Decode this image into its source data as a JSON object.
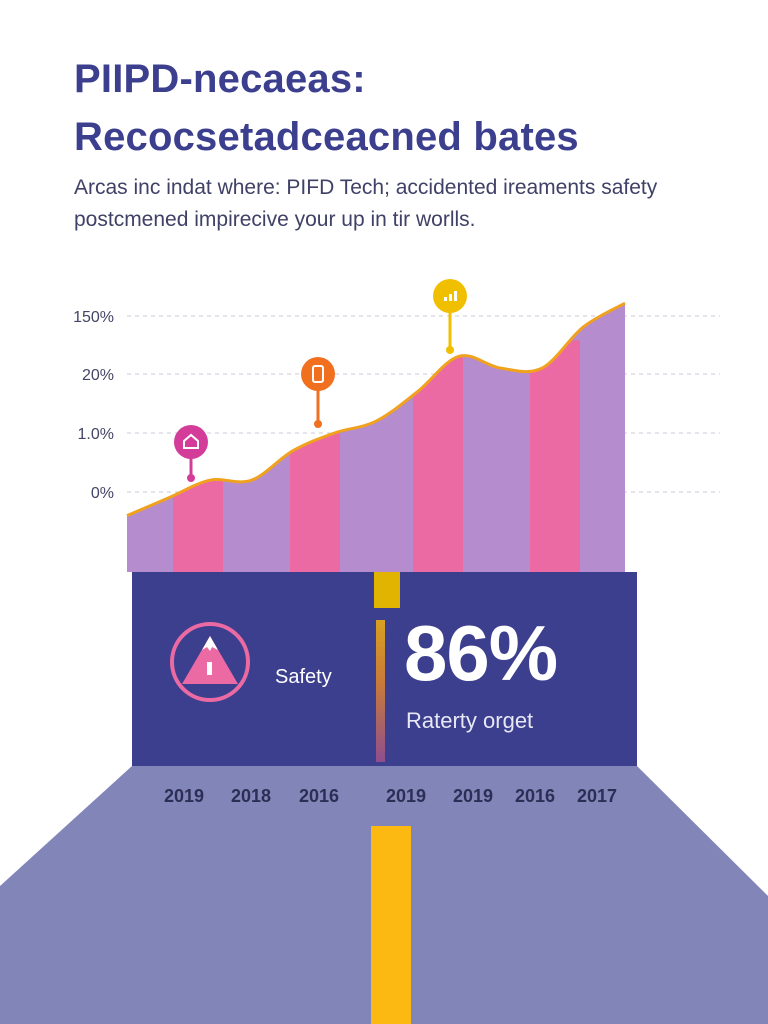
{
  "header": {
    "title_line1": "PIIPD-necaeas:",
    "title_line2": "Recocsetadceacned bates",
    "subtitle_line1": "Arcas inc indat where: PIFD Tech; accidented ireaments safety",
    "subtitle_line2": "postcmened impirecive your up in tir worlls."
  },
  "colors": {
    "title": "#3b3f8e",
    "area_fill": "#b58ccd",
    "bar_fill": "#ec6aa3",
    "line": "#f0a21e",
    "band": "#3b3f8e",
    "road": "#8285b8",
    "center_line": "#fbb911"
  },
  "chart_data": {
    "type": "area",
    "y_ticks": [
      "150%",
      "20%",
      "1.0%",
      "0%"
    ],
    "grid": true,
    "line_values": [
      -0.4,
      -0.1,
      0.2,
      0.2,
      0.7,
      1.0,
      1.2,
      1.7,
      2.3,
      2.1,
      2.1,
      2.8,
      3.2
    ],
    "bar_values": [
      0.2,
      1.1,
      2.3,
      2.4
    ],
    "markers": [
      {
        "icon": "house-icon",
        "color": "#d43c9a"
      },
      {
        "icon": "battery-icon",
        "color": "#f07020"
      },
      {
        "icon": "bar-chart-icon",
        "color": "#f0c000"
      }
    ]
  },
  "stat": {
    "label": "Safety",
    "value": "86%",
    "caption": "Raterty orget",
    "icon": "warning-triangle-icon"
  },
  "years": [
    "2019",
    "2018",
    "2016",
    "2019",
    "2019",
    "2016",
    "2017"
  ]
}
